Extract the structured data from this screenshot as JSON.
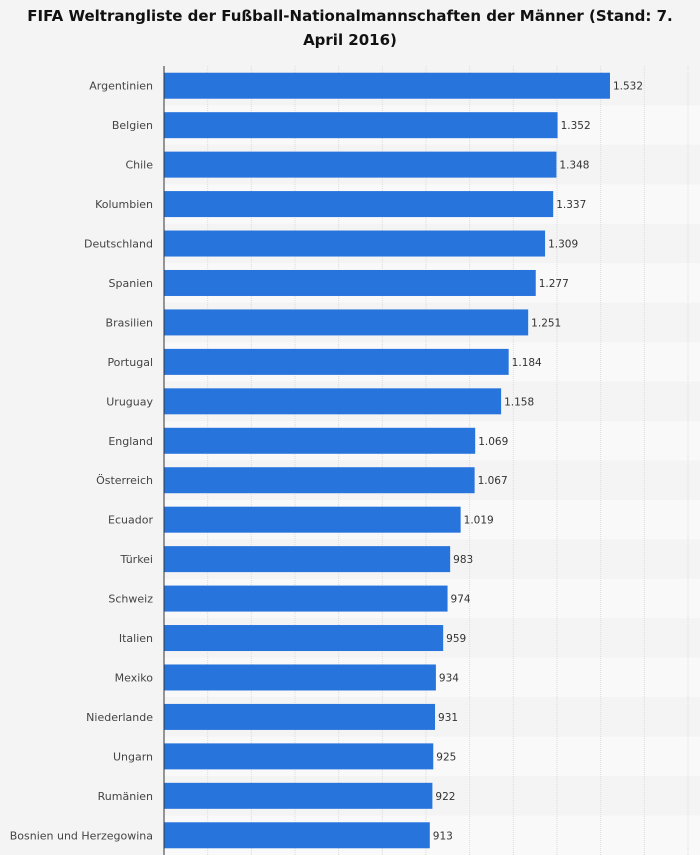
{
  "chart_data": {
    "type": "bar",
    "orientation": "horizontal",
    "title": "FIFA Weltrangliste der Fußball-Nationalmannschaften der Männer (Stand: 7. April 2016)",
    "categories": [
      "Argentinien",
      "Belgien",
      "Chile",
      "Kolumbien",
      "Deutschland",
      "Spanien",
      "Brasilien",
      "Portugal",
      "Uruguay",
      "England",
      "Österreich",
      "Ecuador",
      "Türkei",
      "Schweiz",
      "Italien",
      "Mexiko",
      "Niederlande",
      "Ungarn",
      "Rumänien",
      "Bosnien und Herzegowina"
    ],
    "values": [
      1532,
      1352,
      1348,
      1337,
      1309,
      1277,
      1251,
      1184,
      1158,
      1069,
      1067,
      1019,
      983,
      974,
      959,
      934,
      931,
      925,
      922,
      913
    ],
    "value_labels": [
      "1.532",
      "1.352",
      "1.348",
      "1.337",
      "1.309",
      "1.277",
      "1.251",
      "1.184",
      "1.158",
      "1.069",
      "1.067",
      "1.019",
      "983",
      "974",
      "959",
      "934",
      "931",
      "925",
      "922",
      "913"
    ],
    "xlim": [
      0,
      1800
    ],
    "grid": true,
    "bar_color": "#2874dd"
  }
}
